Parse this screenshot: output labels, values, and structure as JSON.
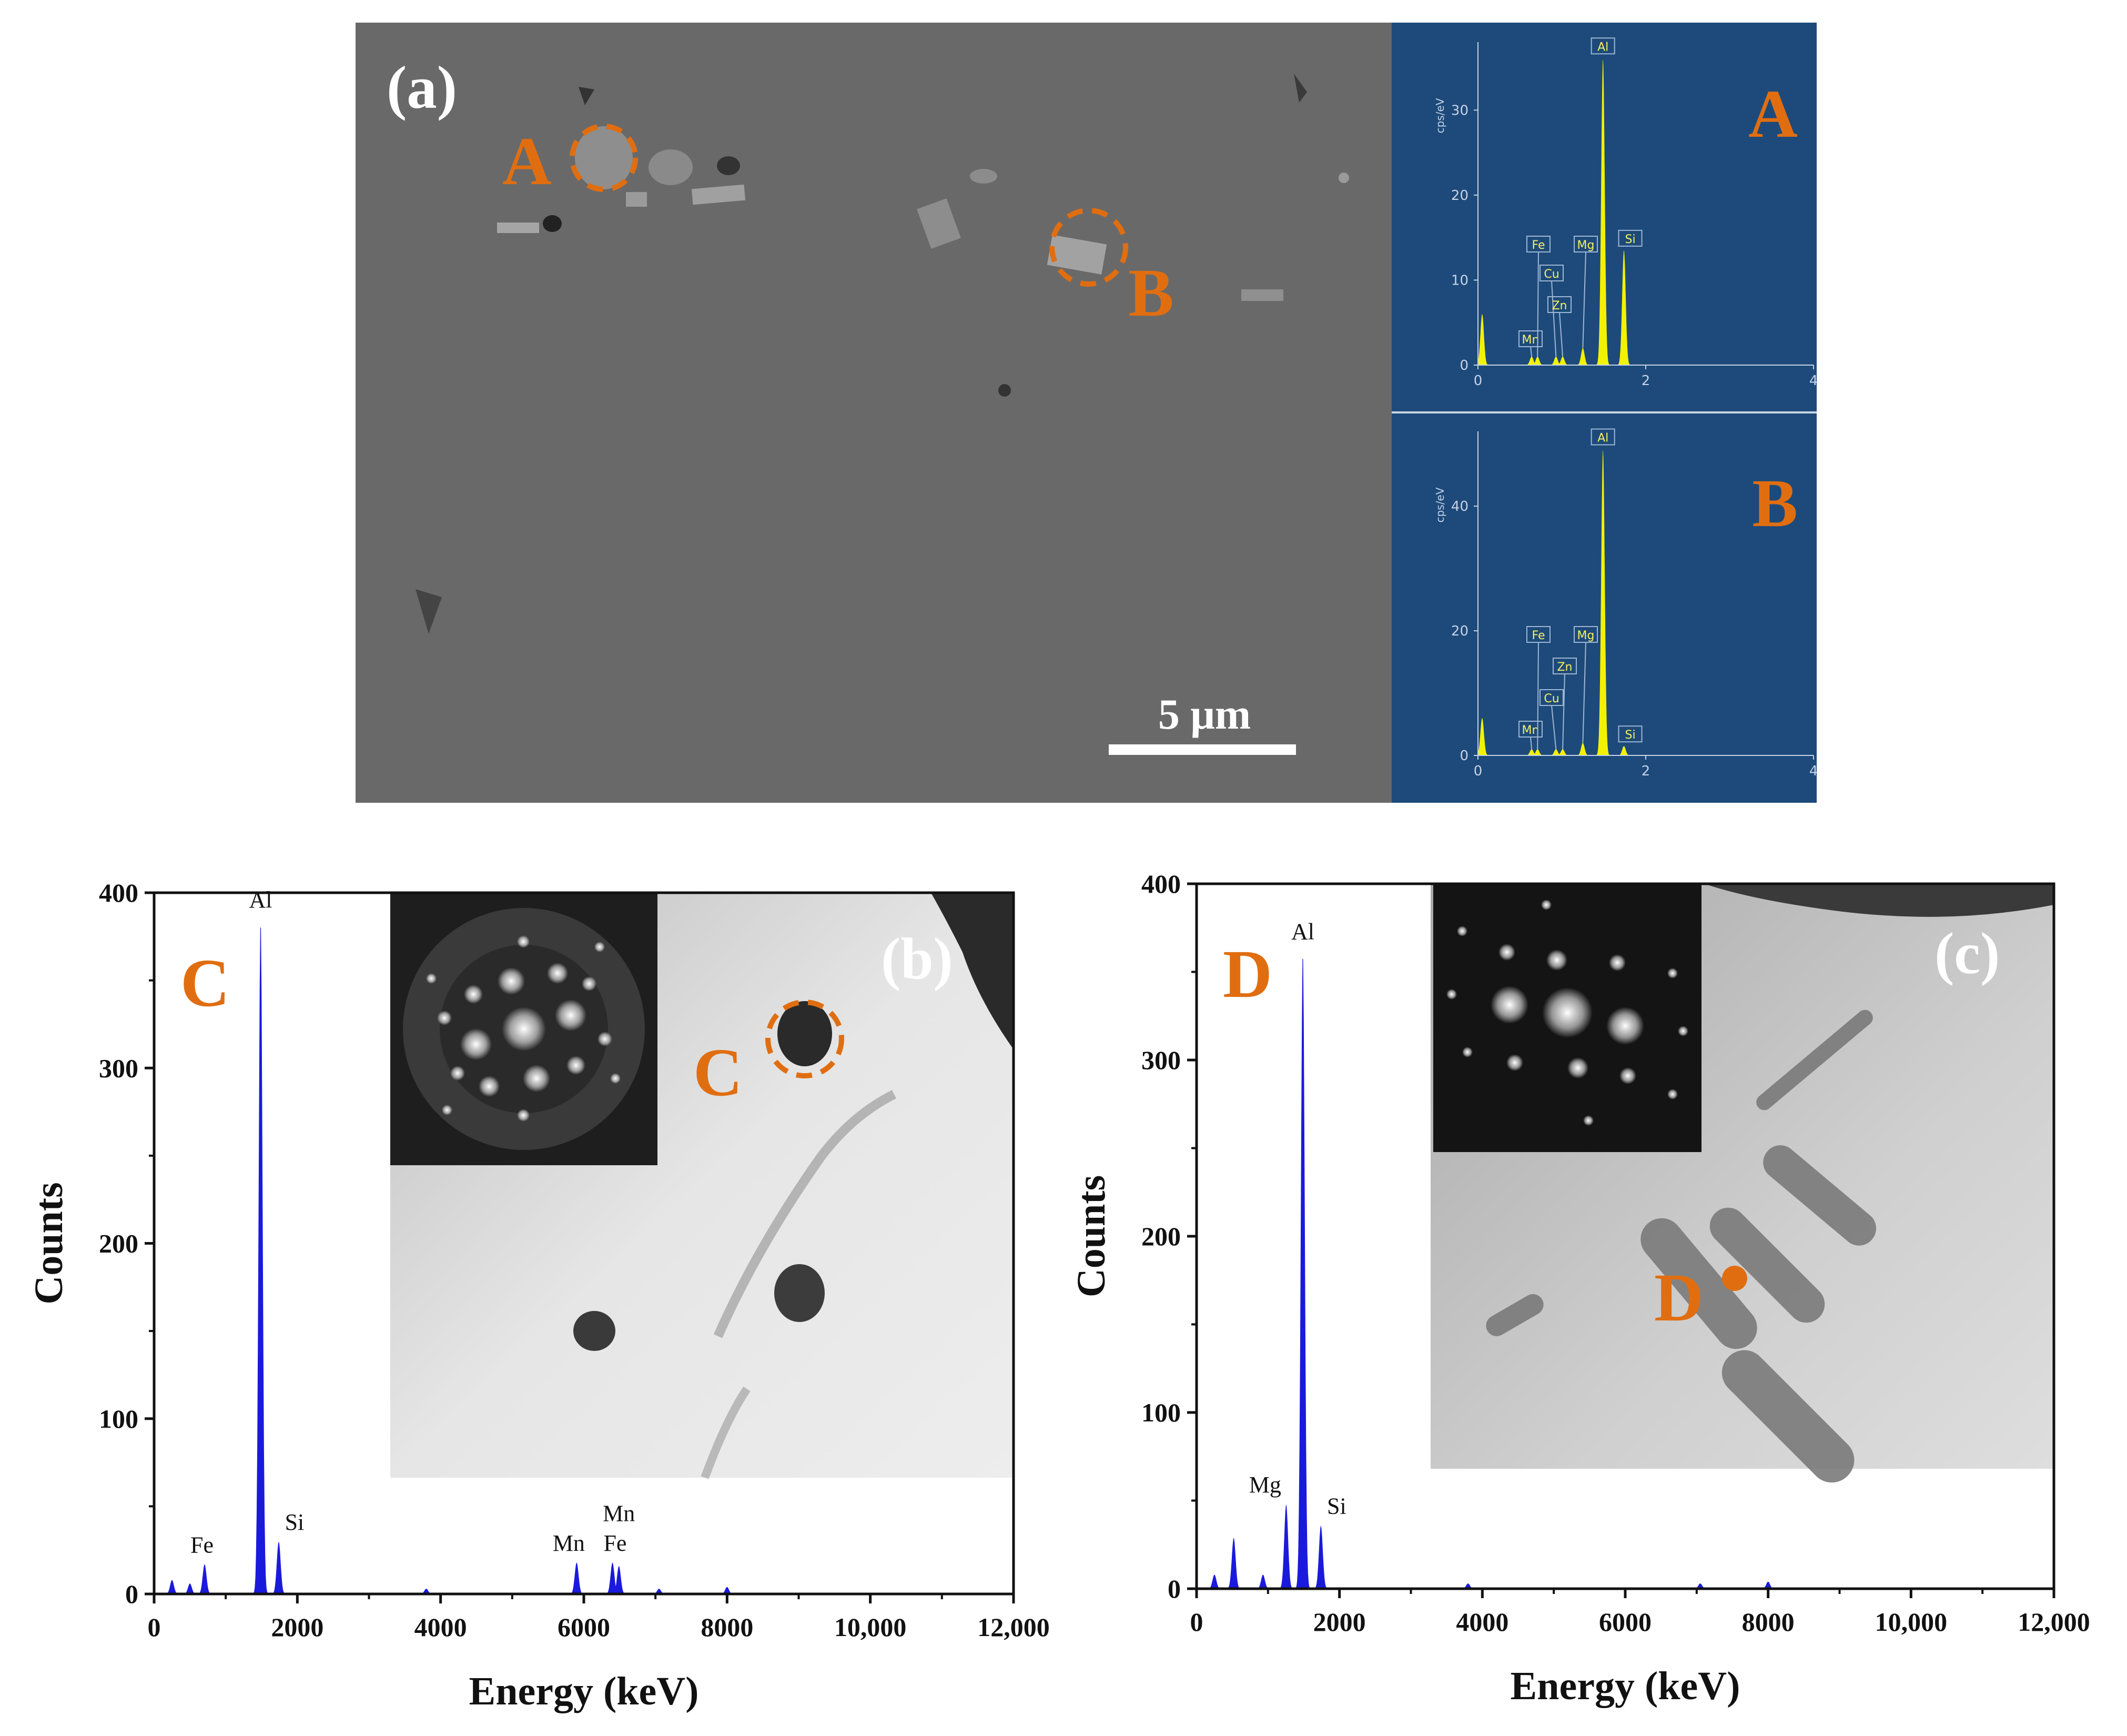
{
  "panels": {
    "a": {
      "label": "(a)",
      "scale_bar": "5 μm",
      "marker_a": "A",
      "marker_b": "B"
    },
    "b": {
      "label": "(b)",
      "marker_c": "C",
      "spectrum_letter": "C"
    },
    "c": {
      "label": "(c)",
      "marker_d": "D",
      "spectrum_letter": "D"
    }
  },
  "colors": {
    "marker": "#e06e10",
    "spectrum_blue": "#1a1adc",
    "eds_background": "#1d4a7a",
    "eds_peaks": "#f2f200"
  },
  "chart_data": [
    {
      "type": "area",
      "panel": "EDS A",
      "letter": "A",
      "ylabel": "cps/eV",
      "xlim": [
        0,
        4
      ],
      "ylim": [
        0,
        38
      ],
      "xticks": [
        "0",
        "2",
        "4"
      ],
      "yticks": [
        "0",
        "10",
        "20",
        "30"
      ],
      "peaks": [
        {
          "element": "Mn",
          "x": 0.64,
          "y": 1
        },
        {
          "element": "Fe",
          "x": 0.71,
          "y": 1
        },
        {
          "element": "Cu",
          "x": 0.93,
          "y": 1
        },
        {
          "element": "Zn",
          "x": 1.01,
          "y": 1
        },
        {
          "element": "Mg",
          "x": 1.25,
          "y": 2
        },
        {
          "element": "Al",
          "x": 1.49,
          "y": 36
        },
        {
          "element": "Si",
          "x": 1.74,
          "y": 13.5
        }
      ],
      "baseline_peaks": [
        {
          "x": 0.05,
          "y": 6
        }
      ]
    },
    {
      "type": "area",
      "panel": "EDS B",
      "letter": "B",
      "ylabel": "cps/eV",
      "xlim": [
        0,
        4
      ],
      "ylim": [
        0,
        52
      ],
      "xticks": [
        "0",
        "2",
        "4"
      ],
      "yticks": [
        "0",
        "20",
        "40"
      ],
      "peaks": [
        {
          "element": "Mn",
          "x": 0.64,
          "y": 1
        },
        {
          "element": "Fe",
          "x": 0.71,
          "y": 1
        },
        {
          "element": "Cu",
          "x": 0.93,
          "y": 1
        },
        {
          "element": "Zn",
          "x": 1.01,
          "y": 1
        },
        {
          "element": "Mg",
          "x": 1.25,
          "y": 2
        },
        {
          "element": "Al",
          "x": 1.49,
          "y": 49
        },
        {
          "element": "Si",
          "x": 1.74,
          "y": 1.5
        }
      ],
      "baseline_peaks": [
        {
          "x": 0.05,
          "y": 6
        }
      ]
    },
    {
      "type": "area",
      "panel": "b",
      "letter": "C",
      "xlabel": "Energy (keV)",
      "ylabel": "Counts",
      "xlim": [
        0,
        12000
      ],
      "ylim": [
        0,
        400
      ],
      "xticks": [
        "0",
        "2000",
        "4000",
        "6000",
        "8000",
        "10,000",
        "12,000"
      ],
      "yticks": [
        "0",
        "100",
        "200",
        "300",
        "400"
      ],
      "peaks": [
        {
          "element": "Fe",
          "x": 705,
          "y": 17
        },
        {
          "element": "Al",
          "x": 1487,
          "y": 385
        },
        {
          "element": "Si",
          "x": 1740,
          "y": 30
        },
        {
          "element": "Mn",
          "x": 5900,
          "y": 18
        },
        {
          "element": "Mn",
          "x": 6490,
          "y": 16
        },
        {
          "element": "Fe",
          "x": 6400,
          "y": 18
        }
      ],
      "peak_labels": [
        {
          "text": "Fe",
          "element": "Fe",
          "x": 705,
          "y": 17
        },
        {
          "text": "Al",
          "element": "Al",
          "x": 1487,
          "y": 385
        },
        {
          "text": "Si",
          "element": "Si",
          "x": 1740,
          "y": 30
        },
        {
          "text": "Mn",
          "element": "Mn",
          "x": 5900,
          "y": 18
        },
        {
          "text": "Mn",
          "element": "Mn",
          "x": 6490,
          "y": 35
        },
        {
          "text": "Fe",
          "element": "Fe",
          "x": 6400,
          "y": 18
        }
      ]
    },
    {
      "type": "area",
      "panel": "c",
      "letter": "D",
      "xlabel": "Energy (keV)",
      "ylabel": "Counts",
      "xlim": [
        0,
        12000
      ],
      "ylim": [
        0,
        400
      ],
      "xticks": [
        "0",
        "2000",
        "4000",
        "6000",
        "8000",
        "10,000",
        "12,000"
      ],
      "yticks": [
        "0",
        "100",
        "200",
        "300",
        "400"
      ],
      "peaks": [
        {
          "element": "Mg",
          "x": 1254,
          "y": 48
        },
        {
          "element": "Al",
          "x": 1487,
          "y": 362
        },
        {
          "element": "Si",
          "x": 1740,
          "y": 36
        }
      ],
      "peak_labels": [
        {
          "text": "Mg",
          "element": "Mg",
          "x": 1254,
          "y": 48
        },
        {
          "text": "Al",
          "element": "Al",
          "x": 1487,
          "y": 362
        },
        {
          "text": "Si",
          "element": "Si",
          "x": 1740,
          "y": 36
        }
      ]
    }
  ]
}
